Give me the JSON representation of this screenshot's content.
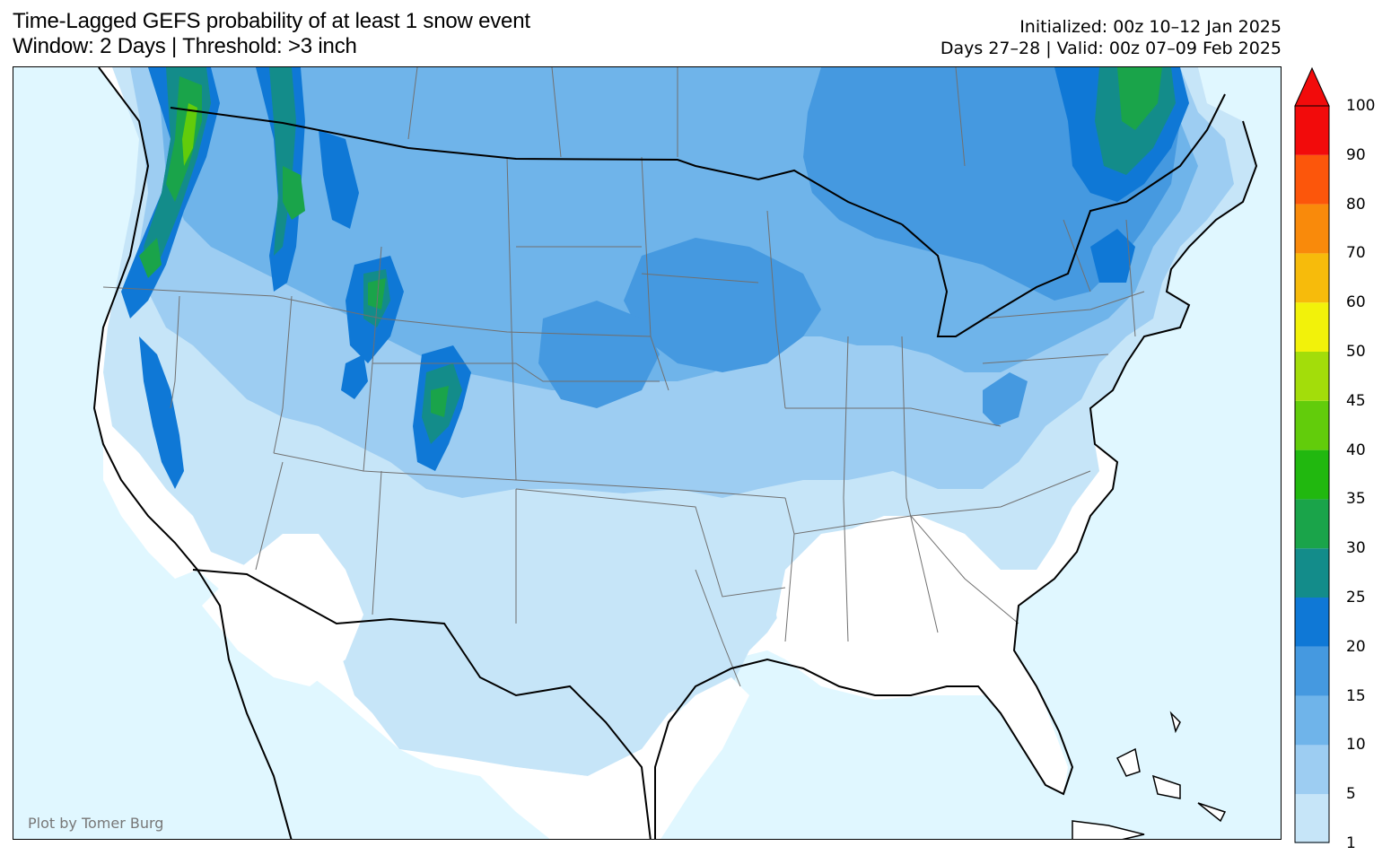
{
  "header": {
    "title_line1": "Time-Lagged GEFS probability of at least 1 snow event",
    "title_line2": "Window: 2 Days | Threshold: >3 inch",
    "init_line": "Initialized: 00z 10–12 Jan 2025",
    "valid_line": "Days 27–28 | Valid: 00z 07–09 Feb 2025"
  },
  "credit": "Plot by Tomer Burg",
  "colors": {
    "ocean": "#e0f7ff",
    "land": "#ffffff",
    "boundary": "#000000",
    "state_lines": "#707070"
  },
  "colorbar": {
    "bins": [
      {
        "from": "1",
        "color": "#c6e5f8"
      },
      {
        "from": "5",
        "color": "#9dcdf2"
      },
      {
        "from": "10",
        "color": "#6fb4ea"
      },
      {
        "from": "15",
        "color": "#4599e0"
      },
      {
        "from": "20",
        "color": "#0f78d6"
      },
      {
        "from": "25",
        "color": "#138c8a"
      },
      {
        "from": "30",
        "color": "#1aa44a"
      },
      {
        "from": "35",
        "color": "#21b80f"
      },
      {
        "from": "40",
        "color": "#62cc0b"
      },
      {
        "from": "45",
        "color": "#a3dd0a"
      },
      {
        "from": "50",
        "color": "#f2f20a"
      },
      {
        "from": "60",
        "color": "#f7bb0b"
      },
      {
        "from": "70",
        "color": "#f98a0b"
      },
      {
        "from": "80",
        "color": "#fc560b"
      },
      {
        "from": "90",
        "color": "#f20b0b"
      }
    ],
    "top_label": "100",
    "extend_color": "#f20b0b"
  }
}
